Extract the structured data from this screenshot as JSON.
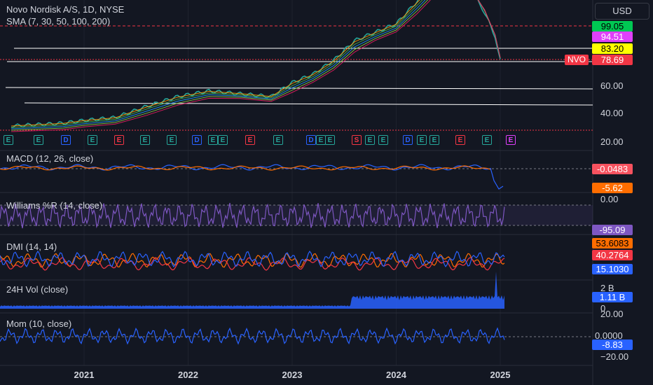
{
  "header": {
    "symbol_title": "Novo Nordisk A/S, 1D, NYSE",
    "sma_title": "SMA (7, 30, 50, 100, 200)",
    "currency": "USD",
    "symbol_tag": "NVO"
  },
  "price_badges": [
    {
      "value": "99.05",
      "bg": "#00c853",
      "fg": "#000000"
    },
    {
      "value": "94.51",
      "bg": "#e040fb",
      "fg": "#ffffff"
    },
    {
      "value": "83.20",
      "bg": "#ffff00",
      "fg": "#000000"
    },
    {
      "value": "78.69",
      "bg": "#f23645",
      "fg": "#ffffff"
    }
  ],
  "price_axis": [
    "60.00",
    "40.00",
    "20.00"
  ],
  "x_ticks": [
    "2021",
    "2022",
    "2023",
    "2024",
    "2025"
  ],
  "indicators": {
    "macd": {
      "title": "MACD (12, 26, close)",
      "values": [
        {
          "value": "-0.0483",
          "bg": "#f7525f",
          "fg": "#ffffff"
        },
        {
          "value": "-5.62",
          "bg": "#ff6d00",
          "fg": "#ffffff"
        }
      ]
    },
    "willr": {
      "title": "Williams %R (14, close)",
      "axis": [
        "0.00"
      ],
      "values": [
        {
          "value": "-95.09",
          "bg": "#7e57c2",
          "fg": "#ffffff"
        }
      ]
    },
    "dmi": {
      "title": "DMI (14, 14)",
      "values": [
        {
          "value": "53.6083",
          "bg": "#ff6d00",
          "fg": "#000000"
        },
        {
          "value": "40.2764",
          "bg": "#f23645",
          "fg": "#ffffff"
        },
        {
          "value": "15.1030",
          "bg": "#2962ff",
          "fg": "#ffffff"
        }
      ]
    },
    "vol": {
      "title": "24H Vol (close)",
      "axis": [
        "2 B",
        "0"
      ],
      "values": [
        {
          "value": "1.11 B",
          "bg": "#2962ff",
          "fg": "#ffffff"
        }
      ]
    },
    "mom": {
      "title": "Mom (10, close)",
      "axis": [
        "20.00",
        "0.0000",
        "−20.00"
      ],
      "values": [
        {
          "value": "-8.83",
          "bg": "#2962ff",
          "fg": "#ffffff"
        }
      ]
    }
  },
  "event_markers": [
    "E",
    "E",
    "D",
    "E",
    "E",
    "E",
    "E",
    "D",
    "E",
    "E",
    "E",
    "E",
    "D",
    "E",
    "E",
    "S",
    "E",
    "E",
    "D",
    "E",
    "E",
    "E",
    "E",
    "E"
  ],
  "chart_data": {
    "type": "line",
    "title": "Novo Nordisk A/S, 1D, NYSE",
    "x": [
      2020.3,
      2020.8,
      2021.0,
      2021.3,
      2021.6,
      2021.9,
      2022.2,
      2022.5,
      2022.8,
      2023.0,
      2023.2,
      2023.4,
      2023.6,
      2023.8,
      2024.0,
      2024.2,
      2024.4,
      2024.55,
      2024.7,
      2024.85,
      2024.95,
      2025.0
    ],
    "series": [
      {
        "name": "NVO",
        "values": [
          31,
          33,
          35,
          37,
          45,
          52,
          56,
          54,
          52,
          62,
          68,
          78,
          92,
          98,
          104,
          120,
          135,
          140,
          132,
          112,
          95,
          78.69
        ]
      }
    ],
    "ylim": [
      20,
      140
    ],
    "horizontal_levels": [
      99.05,
      94.51,
      83.2,
      78.69
    ],
    "last_close": 78.69
  }
}
